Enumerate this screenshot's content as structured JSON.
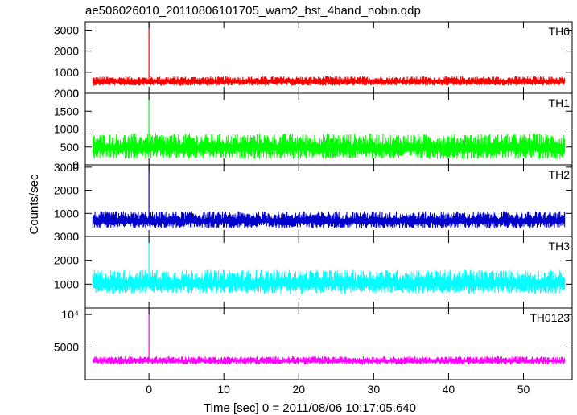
{
  "chart_data": {
    "type": "line",
    "title": "ae506026010_20110806101705_wam2_bst_4band_nobin.qdp",
    "xlabel": "Time [sec] 0 = 2011/08/06 10:17:05.640",
    "ylabel": "Counts/sec",
    "xlim": [
      -8.5,
      56.5
    ],
    "x_ticks": [
      0,
      10,
      20,
      30,
      40,
      50
    ],
    "x_tick_labels": [
      "0",
      "10",
      "20",
      "30",
      "40",
      "50"
    ],
    "grid": false,
    "panels": [
      {
        "name": "TH0",
        "color": "#ff0000",
        "ylim": [
          0,
          3400
        ],
        "ticks": [
          1000,
          2000,
          3000
        ],
        "tick_labels": [
          "1000",
          "2000",
          "3000"
        ],
        "zero_label": "0",
        "baseline": 560,
        "noise": 200,
        "spike_x": 0,
        "spike_y": 3400
      },
      {
        "name": "TH1",
        "color": "#00ff00",
        "ylim": [
          0,
          2000
        ],
        "ticks": [
          500,
          1000,
          1500,
          2000
        ],
        "tick_labels": [
          "500",
          "1000",
          "1500",
          "2000"
        ],
        "zero_label": "0",
        "baseline": 480,
        "noise": 320,
        "spike_x": 0,
        "spike_y": 2000
      },
      {
        "name": "TH2",
        "color": "#0000cc",
        "ylim": [
          0,
          3100
        ],
        "ticks": [
          1000,
          2000,
          3000
        ],
        "tick_labels": [
          "1000",
          "2000",
          "3000"
        ],
        "zero_label": "0",
        "baseline": 680,
        "noise": 330,
        "spike_x": 0,
        "spike_y": 3100
      },
      {
        "name": "TH3",
        "color": "#00ffff",
        "ylim": [
          0,
          3000
        ],
        "ticks": [
          1000,
          2000,
          3000
        ],
        "tick_labels": [
          "1000",
          "2000",
          "3000"
        ],
        "zero_label": "",
        "baseline": 1050,
        "noise": 450,
        "spike_x": 0,
        "spike_y": 3000
      },
      {
        "name": "TH0123",
        "color": "#ff00ff",
        "ylim": [
          0,
          11000
        ],
        "ticks": [
          5000,
          10000
        ],
        "tick_labels": [
          "5000",
          "10⁴"
        ],
        "zero_label": "",
        "baseline": 2900,
        "noise": 550,
        "spike_x": 0,
        "spike_y": 11000
      }
    ]
  }
}
